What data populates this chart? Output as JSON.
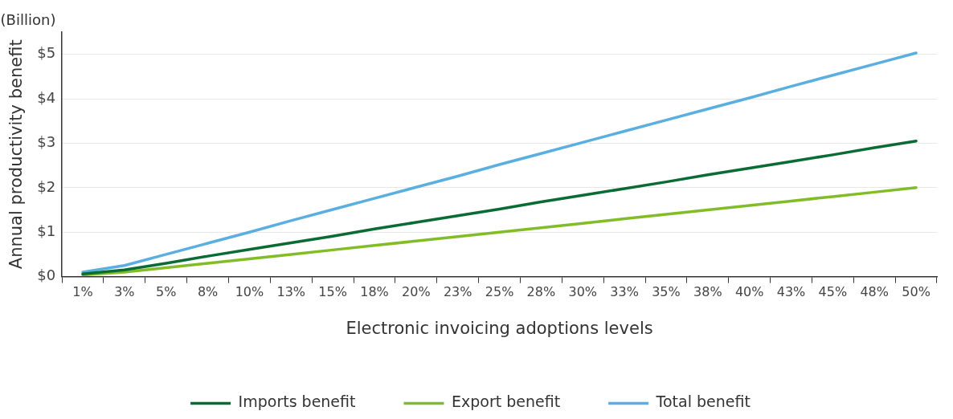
{
  "chart_data": {
    "type": "line",
    "xlabel": "Electronic invoicing adoptions levels",
    "ylabel": "Annual productivity benefit",
    "annotations": [
      "(Billion)"
    ],
    "categories": [
      "1%",
      "3%",
      "5%",
      "8%",
      "10%",
      "13%",
      "15%",
      "18%",
      "20%",
      "23%",
      "25%",
      "28%",
      "30%",
      "33%",
      "35%",
      "38%",
      "40%",
      "43%",
      "45%",
      "48%",
      "50%"
    ],
    "series": [
      {
        "name": "Imports benefit",
        "color": "#0b6b35",
        "values": [
          0.06,
          0.15,
          0.3,
          0.46,
          0.61,
          0.76,
          0.91,
          1.07,
          1.22,
          1.37,
          1.52,
          1.68,
          1.83,
          1.98,
          2.13,
          2.29,
          2.44,
          2.59,
          2.74,
          2.9,
          3.05
        ]
      },
      {
        "name": "Export benefit",
        "color": "#82bc26",
        "values": [
          0.04,
          0.1,
          0.2,
          0.3,
          0.4,
          0.5,
          0.6,
          0.7,
          0.8,
          0.9,
          1.0,
          1.1,
          1.2,
          1.3,
          1.4,
          1.5,
          1.6,
          1.7,
          1.8,
          1.9,
          2.0
        ]
      },
      {
        "name": "Total benefit",
        "color": "#5aafe0",
        "values": [
          0.1,
          0.25,
          0.5,
          0.75,
          1.0,
          1.26,
          1.51,
          1.76,
          2.01,
          2.26,
          2.52,
          2.77,
          3.02,
          3.27,
          3.52,
          3.77,
          4.02,
          4.28,
          4.53,
          4.78,
          5.03
        ]
      }
    ],
    "ylim": [
      0,
      5.5
    ],
    "yticks": [
      {
        "value": 0,
        "label": "$0"
      },
      {
        "value": 1,
        "label": "$1"
      },
      {
        "value": 2,
        "label": "$2"
      },
      {
        "value": 3,
        "label": "$3"
      },
      {
        "value": 4,
        "label": "$4"
      },
      {
        "value": 5,
        "label": "$5"
      }
    ],
    "grid": "y",
    "legend": "bottom",
    "marker": "none",
    "line_style": "solid"
  }
}
